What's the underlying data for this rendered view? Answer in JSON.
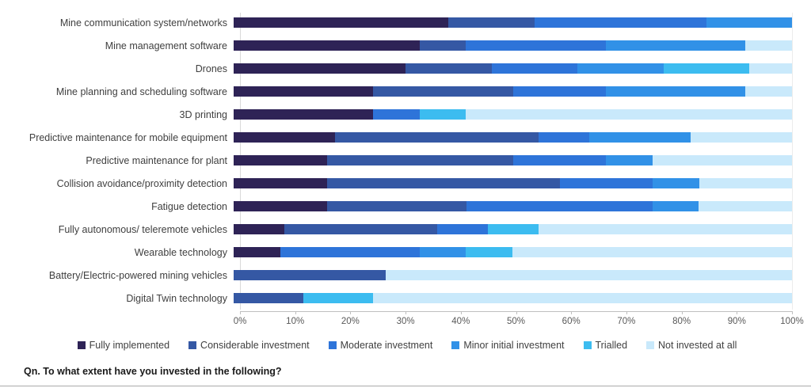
{
  "question": "Qn. To what extent have you invested in the following?",
  "chart_data": {
    "type": "bar",
    "orientation": "horizontal",
    "stacked": true,
    "unit": "%",
    "xlim": [
      0,
      100
    ],
    "x_tick_labels": [
      "0%",
      "10%",
      "20%",
      "30%",
      "40%",
      "50%",
      "60%",
      "70%",
      "80%",
      "90%",
      "100%"
    ],
    "legend_position": "bottom",
    "grid": false,
    "categories": [
      "Mine communication system/networks",
      "Mine management software",
      "Drones",
      "Mine planning and scheduling software",
      "3D printing",
      "Predictive maintenance for mobile equipment",
      "Predictive maintenance for plant",
      "Collision avoidance/proximity detection",
      "Fatigue detection",
      "Fully autonomous/ teleremote vehicles",
      "Wearable technology",
      "Battery/Electric-powered mining vehicles",
      "Digital Twin technology"
    ],
    "series": [
      {
        "name": "Fully implemented",
        "color": "#2e2356",
        "values": [
          38.5,
          33.3,
          30.8,
          25.0,
          25.0,
          18.2,
          16.7,
          16.7,
          16.7,
          9.1,
          8.3,
          0.0,
          0.0
        ]
      },
      {
        "name": "Considerable investment",
        "color": "#3558a4",
        "values": [
          15.4,
          8.3,
          15.4,
          25.0,
          0.0,
          36.4,
          33.3,
          41.7,
          25.0,
          27.3,
          0.0,
          27.3,
          12.5
        ]
      },
      {
        "name": "Moderate investment",
        "color": "#2e74d9",
        "values": [
          30.8,
          25.0,
          15.4,
          16.7,
          8.3,
          9.1,
          16.7,
          16.7,
          33.3,
          9.1,
          25.0,
          0.0,
          0.0
        ]
      },
      {
        "name": "Minor initial investment",
        "color": "#3191e7",
        "values": [
          15.4,
          25.0,
          15.4,
          25.0,
          0.0,
          18.2,
          8.3,
          8.3,
          8.3,
          0.0,
          8.3,
          0.0,
          0.0
        ]
      },
      {
        "name": "Trialled",
        "color": "#3cbcf0",
        "values": [
          0.0,
          0.0,
          15.4,
          0.0,
          8.3,
          0.0,
          0.0,
          0.0,
          0.0,
          9.1,
          8.3,
          0.0,
          12.5
        ]
      },
      {
        "name": "Not invested at all",
        "color": "#c9e9fb",
        "values": [
          0.0,
          8.4,
          7.6,
          8.3,
          58.4,
          18.1,
          25.0,
          16.6,
          16.7,
          45.4,
          50.1,
          72.7,
          75.0
        ]
      }
    ]
  }
}
